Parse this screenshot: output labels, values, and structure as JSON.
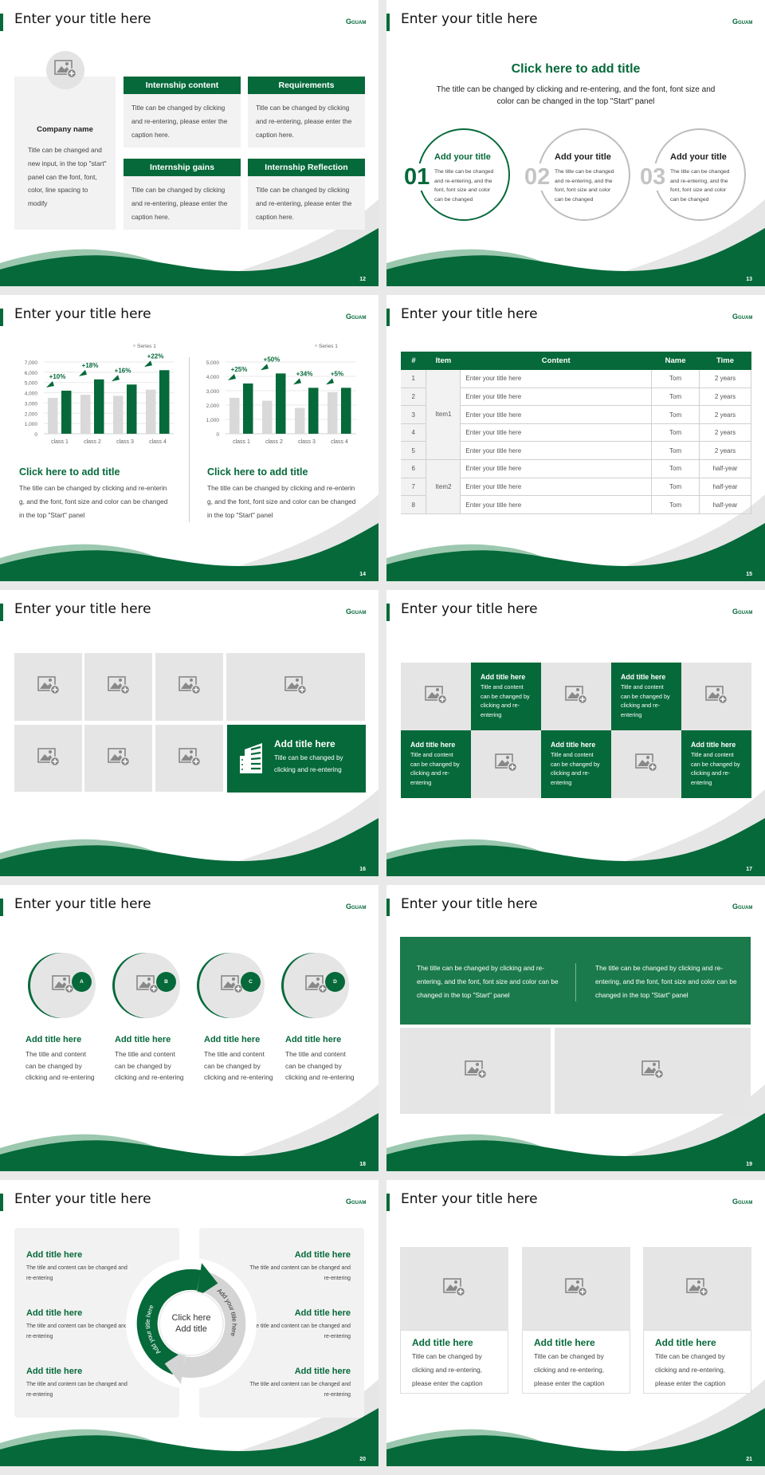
{
  "colors": {
    "brand_green": "#05693a",
    "banner_green": "#1b7a4b",
    "light_green": "#9cc8af",
    "panel_gray": "#f2f2f2",
    "placeholder_gray": "#e6e5e5",
    "ring_gray": "#bdbdbd"
  },
  "logo": "GUAM",
  "slides": [
    {
      "number": "12",
      "title": "Enter your title here",
      "company": {
        "name": "Company name",
        "text": "Title can be changed and new input, in the top \"start\" panel can the font, font, color, line spacing to modify"
      },
      "cards": [
        {
          "header": "Internship content",
          "text": "Title can be changed by clicking and re-entering, please enter the caption here."
        },
        {
          "header": "Requirements",
          "text": "Title can be changed by clicking and re-entering, please enter the caption here."
        },
        {
          "header": "Internship gains",
          "text": "Title can be changed by clicking and re-entering, please enter the caption here."
        },
        {
          "header": "Internship Reflection",
          "text": "Title can be changed by clicking and re-entering, please enter the caption here."
        }
      ]
    },
    {
      "number": "13",
      "title": "Enter your title here",
      "heading": "Click here to add title",
      "subheading": "The title can be changed by clicking and re-entering, and the font, font size and color can be changed in the top \"Start\" panel",
      "steps": [
        {
          "num": "01",
          "title": "Add your title",
          "text": "The title can be changed and re-entering, and the font, font size and color can be changed",
          "active": true
        },
        {
          "num": "02",
          "title": "Add your title",
          "text": "The title can be changed and re-entering, and the font, font size and color can be changed",
          "active": false
        },
        {
          "num": "03",
          "title": "Add your title",
          "text": "The title can be changed and re-entering, and the font, font size and color can be changed",
          "active": false
        }
      ]
    },
    {
      "number": "14",
      "title": "Enter your title here",
      "blocks": [
        {
          "title": "Click here to add title",
          "text": "The title can be changed by clicking and re-entering, and the font, font size and color can be changed in the top \"Start\" panel"
        },
        {
          "title": "Click here to add title",
          "text": "The title can be changed by clicking and re-entering, and the font, font size and color can be changed in the top \"Start\" panel"
        }
      ]
    },
    {
      "number": "15",
      "title": "Enter your title here",
      "table": {
        "headers": [
          "#",
          "Item",
          "Content",
          "Name",
          "Time"
        ],
        "groups": [
          {
            "label": "Item1",
            "rows": 5
          },
          {
            "label": "Item2",
            "rows": 3
          }
        ],
        "rows": [
          [
            "1",
            "Enter your title here",
            "Tom",
            "2 years"
          ],
          [
            "2",
            "Enter your title here",
            "Tom",
            "2 years"
          ],
          [
            "3",
            "Enter your title here",
            "Tom",
            "2 years"
          ],
          [
            "4",
            "Enter your title here",
            "Tom",
            "2 years"
          ],
          [
            "5",
            "Enter your title here",
            "Tom",
            "2 years"
          ],
          [
            "6",
            "Enter your title here",
            "Tom",
            "half-year"
          ],
          [
            "7",
            "Enter your title here",
            "Tom",
            "half-year"
          ],
          [
            "8",
            "Enter your title here",
            "Tom",
            "half-year"
          ]
        ]
      }
    },
    {
      "number": "16",
      "title": "Enter your title here",
      "feature": {
        "title": "Add title here",
        "text": "Title can be changed by clicking and re-entering",
        "icon": "building-icon"
      }
    },
    {
      "number": "17",
      "title": "Enter your title here",
      "tiles": [
        {
          "title": "Add title here",
          "text": "Title and content can be changed by clicking and re-entering"
        },
        {
          "title": "Add title here",
          "text": "Title and content can be changed by clicking and re-entering"
        },
        {
          "title": "Add title here",
          "text": "Title and content can be changed by clicking and re-entering"
        },
        {
          "title": "Add title here",
          "text": "Title and content can be changed by clicking and re-entering"
        },
        {
          "title": "Add title here",
          "text": "Title and content can be changed by clicking and re-entering"
        }
      ]
    },
    {
      "number": "18",
      "title": "Enter your title here",
      "items": [
        {
          "badge": "A",
          "title": "Add title here",
          "text": "The title and content can be changed by clicking and re-entering"
        },
        {
          "badge": "B",
          "title": "Add title here",
          "text": "The title and content can be changed by clicking and re-entering"
        },
        {
          "badge": "C",
          "title": "Add title here",
          "text": "The title and content can be changed by clicking and re-entering"
        },
        {
          "badge": "D",
          "title": "Add title here",
          "text": "The title and content can be changed by clicking and re-entering"
        }
      ]
    },
    {
      "number": "19",
      "title": "Enter your title here",
      "banner": [
        "The title can be changed by clicking and re-entering, and the font, font size and color can be changed in the top \"Start\" panel",
        "The title can be changed by clicking and re-entering, and the font, font size and color can be changed in the top \"Start\" panel"
      ]
    },
    {
      "number": "20",
      "title": "Enter your title here",
      "center": [
        "Click here",
        "Add title"
      ],
      "arc_left": "Add your title here",
      "arc_right": "Add your title here",
      "left": [
        {
          "title": "Add title here",
          "text": "The title and content can be changed and re-entering"
        },
        {
          "title": "Add title here",
          "text": "The title and content can be changed and re-entering"
        },
        {
          "title": "Add title here",
          "text": "The title and content can be changed and re-entering"
        }
      ],
      "right": [
        {
          "title": "Add title here",
          "text": "The title and content can be changed and re-entering"
        },
        {
          "title": "Add title here",
          "text": "The title and content can be changed and re-entering"
        },
        {
          "title": "Add title here",
          "text": "The title and content can be changed and re-entering"
        }
      ]
    },
    {
      "number": "21",
      "title": "Enter your title here",
      "cards": [
        {
          "title": "Add title here",
          "text": "Title can be changed by clicking and re-entering, please enter the caption"
        },
        {
          "title": "Add title here",
          "text": "Title can be changed by clicking and re-entering, please enter the caption"
        },
        {
          "title": "Add title here",
          "text": "Title can be changed by clicking and re-entering, please enter the caption"
        }
      ]
    }
  ],
  "chart_data": [
    {
      "type": "bar",
      "categories": [
        "class 1",
        "class 2",
        "class 3",
        "class 4"
      ],
      "series": [
        {
          "name": "Series 1",
          "values": [
            3500,
            3800,
            3700,
            4300
          ],
          "color": "#d9d9d9"
        },
        {
          "values": [
            4200,
            5300,
            4800,
            6200
          ],
          "color": "#05693a"
        }
      ],
      "annotations": [
        "+10%",
        "+18%",
        "+16%",
        "+22%"
      ],
      "yticks": [
        "0",
        "1,000",
        "2,000",
        "3,000",
        "4,000",
        "5,000",
        "6,000",
        "7,000"
      ],
      "ylim": [
        0,
        7000
      ],
      "legend": "top-right",
      "grid": true
    },
    {
      "type": "bar",
      "categories": [
        "class 1",
        "class 2",
        "class 3",
        "class 4"
      ],
      "series": [
        {
          "name": "Series 1",
          "values": [
            2500,
            2300,
            1800,
            2900
          ],
          "color": "#d9d9d9"
        },
        {
          "values": [
            3500,
            4200,
            3200,
            3200
          ],
          "color": "#05693a"
        }
      ],
      "annotations": [
        "+25%",
        "+50%",
        "+34%",
        "+5%"
      ],
      "yticks": [
        "0",
        "1,000",
        "2,000",
        "3,000",
        "4,000",
        "5,000"
      ],
      "ylim": [
        0,
        5000
      ],
      "legend": "top-right",
      "grid": true
    }
  ]
}
